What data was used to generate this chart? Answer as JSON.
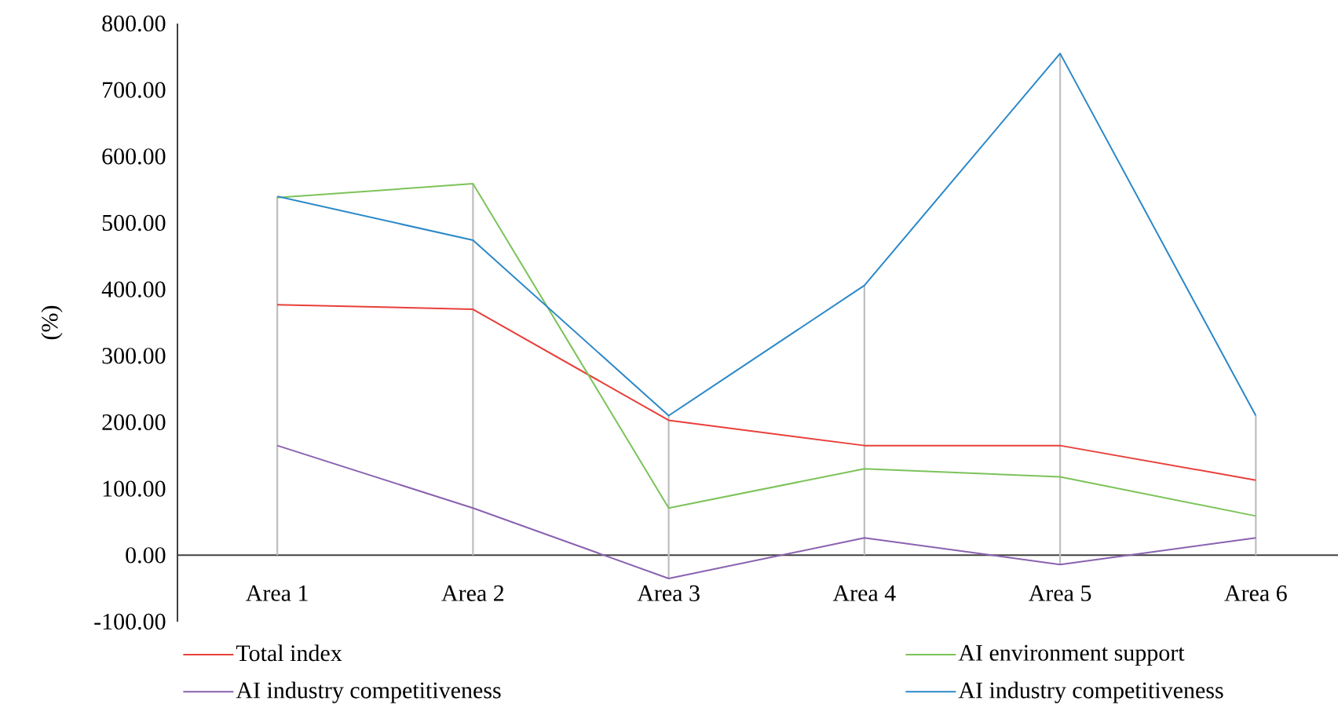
{
  "chart_data": {
    "type": "line",
    "ylabel": "(%)",
    "categories": [
      "Area 1",
      "Area 2",
      "Area 3",
      "Area 4",
      "Area 5",
      "Area 6"
    ],
    "series": [
      {
        "name": "Total index",
        "color": "#e8403a",
        "values": [
          377,
          370,
          203,
          165,
          165,
          113
        ]
      },
      {
        "name": "AI environment support",
        "color": "#7cc35a",
        "values": [
          538,
          559,
          71,
          130,
          118,
          59
        ]
      },
      {
        "name": "AI industry competitiveness",
        "color": "#8a62b0",
        "values": [
          165,
          71,
          -35,
          26,
          -14,
          26
        ]
      },
      {
        "name": "AI industry competitiveness",
        "color": "#2b88c8",
        "values": [
          540,
          474,
          210,
          406,
          755,
          210
        ]
      },
      {
        "type": "bar",
        "color": "#bfbfbf",
        "values": [
          540,
          559,
          245,
          406,
          769,
          210
        ],
        "base": [
          0,
          0,
          -35,
          0,
          -14,
          0
        ]
      }
    ],
    "ylim": [
      -100,
      800
    ],
    "yticks": [
      {
        "value": -100,
        "label": "-100.00"
      },
      {
        "value": 0,
        "label": "0.00"
      },
      {
        "value": 100,
        "label": "100.00"
      },
      {
        "value": 200,
        "label": "200.00"
      },
      {
        "value": 300,
        "label": "300.00"
      },
      {
        "value": 400,
        "label": "400.00"
      },
      {
        "value": 500,
        "label": "500.00"
      },
      {
        "value": 600,
        "label": "600.00"
      },
      {
        "value": 700,
        "label": "700.00"
      },
      {
        "value": 800,
        "label": "800.00"
      }
    ],
    "legend": "bottom"
  }
}
